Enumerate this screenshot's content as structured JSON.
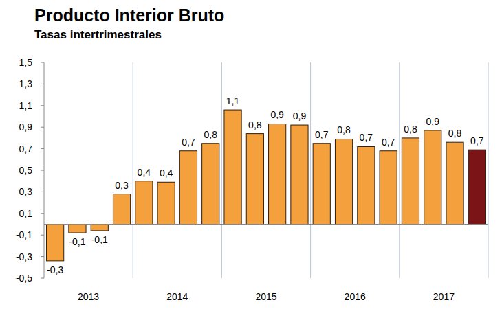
{
  "chart_data": {
    "type": "bar",
    "title": "Producto Interior Bruto",
    "subtitle": "Tasas intertrimestrales",
    "categories": [
      "2013",
      null,
      null,
      null,
      "2014",
      null,
      null,
      null,
      "2015",
      null,
      null,
      null,
      "2016",
      null,
      null,
      null,
      "2017",
      null,
      null,
      null
    ],
    "values": [
      -0.34,
      -0.08,
      -0.06,
      0.28,
      0.4,
      0.39,
      0.68,
      0.75,
      1.06,
      0.84,
      0.93,
      0.92,
      0.75,
      0.79,
      0.72,
      0.68,
      0.8,
      0.87,
      0.76,
      0.69
    ],
    "value_labels": [
      "-0,3",
      "-0,1",
      "-0,1",
      "0,3",
      "0,4",
      "0,4",
      "0,7",
      "0,8",
      "1,1",
      "0,8",
      "0,9",
      "0,9",
      "0,7",
      "0,8",
      "0,7",
      "0,7",
      "0,8",
      "0,9",
      "0,8",
      "0,7"
    ],
    "colors": [
      "#f4a03c",
      "#f4a03c",
      "#f4a03c",
      "#f4a03c",
      "#f4a03c",
      "#f4a03c",
      "#f4a03c",
      "#f4a03c",
      "#f4a03c",
      "#f4a03c",
      "#f4a03c",
      "#f4a03c",
      "#f4a03c",
      "#f4a03c",
      "#f4a03c",
      "#f4a03c",
      "#f4a03c",
      "#f4a03c",
      "#f4a03c",
      "#7b1416"
    ],
    "ylim": [
      -0.5,
      1.5
    ],
    "yticks": [
      {
        "value": -0.5,
        "label": "-0,5"
      },
      {
        "value": -0.3,
        "label": "-0,3"
      },
      {
        "value": -0.1,
        "label": "-0,1"
      },
      {
        "value": 0.1,
        "label": "0,1"
      },
      {
        "value": 0.3,
        "label": "0,3"
      },
      {
        "value": 0.5,
        "label": "0,5"
      },
      {
        "value": 0.7,
        "label": "0,7"
      },
      {
        "value": 0.9,
        "label": "0,9"
      },
      {
        "value": 1.1,
        "label": "1,1"
      },
      {
        "value": 1.3,
        "label": "1,3"
      },
      {
        "value": 1.5,
        "label": "1,5"
      }
    ],
    "grid": false,
    "data_labels": true
  }
}
